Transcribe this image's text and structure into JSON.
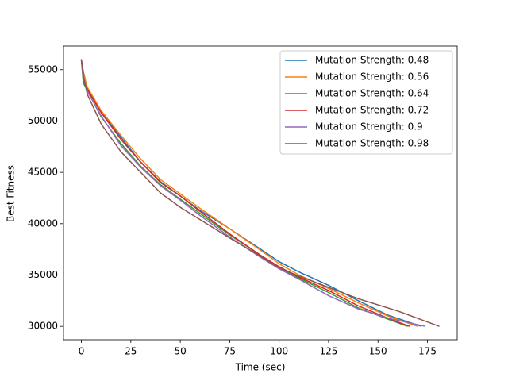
{
  "chart_data": {
    "type": "line",
    "xlabel": "Time (sec)",
    "ylabel": "Best Fitness",
    "xlim": [
      -9.05,
      190.05
    ],
    "ylim": [
      28700,
      57300
    ],
    "xticks": [
      0,
      25,
      50,
      75,
      100,
      125,
      150,
      175
    ],
    "yticks": [
      30000,
      35000,
      40000,
      45000,
      50000,
      55000
    ],
    "legend": "upper right",
    "series": [
      {
        "name": "Mutation Strength: 0.48",
        "color": "#1f77b4",
        "x": [
          0,
          1,
          3,
          10,
          20,
          30,
          40,
          50,
          60,
          75,
          90,
          100,
          110,
          125,
          140,
          155,
          172
        ],
        "values": [
          56000,
          54800,
          53200,
          50900,
          48400,
          46000,
          44100,
          42700,
          41300,
          39500,
          37600,
          36300,
          35300,
          34000,
          32500,
          31100,
          30000
        ]
      },
      {
        "name": "Mutation Strength: 0.56",
        "color": "#ff7f0e",
        "x": [
          0,
          1,
          3,
          10,
          20,
          30,
          40,
          50,
          60,
          75,
          90,
          100,
          110,
          125,
          140,
          155,
          170
        ],
        "values": [
          56000,
          54600,
          53300,
          51000,
          48600,
          46300,
          44300,
          42900,
          41500,
          39500,
          37500,
          36100,
          35000,
          33700,
          32300,
          31000,
          30000
        ]
      },
      {
        "name": "Mutation Strength: 0.64",
        "color": "#2ca02c",
        "x": [
          0,
          1,
          3,
          10,
          20,
          30,
          40,
          50,
          60,
          75,
          90,
          100,
          110,
          125,
          140,
          155,
          165
        ],
        "values": [
          56000,
          53700,
          53000,
          50400,
          47800,
          45600,
          43800,
          42400,
          41000,
          38900,
          37000,
          35700,
          34700,
          33300,
          31800,
          30700,
          30000
        ]
      },
      {
        "name": "Mutation Strength: 0.72",
        "color": "#d62728",
        "x": [
          0,
          1,
          3,
          10,
          20,
          30,
          40,
          50,
          60,
          75,
          90,
          100,
          110,
          125,
          140,
          155,
          166
        ],
        "values": [
          56000,
          54000,
          53100,
          50800,
          48200,
          46000,
          44000,
          42700,
          41200,
          39000,
          37000,
          35800,
          34800,
          33500,
          32000,
          30800,
          30000
        ]
      },
      {
        "name": "Mutation Strength: 0.9",
        "color": "#9467bd",
        "x": [
          0,
          1,
          3,
          10,
          20,
          30,
          40,
          50,
          60,
          75,
          90,
          100,
          110,
          125,
          140,
          155,
          174
        ],
        "values": [
          56000,
          54200,
          52900,
          50500,
          47600,
          45500,
          43700,
          42300,
          40800,
          38700,
          36800,
          35600,
          34600,
          33000,
          31700,
          30800,
          30000
        ]
      },
      {
        "name": "Mutation Strength: 0.98",
        "color": "#8c564b",
        "x": [
          0,
          1,
          3,
          10,
          20,
          30,
          40,
          50,
          60,
          75,
          90,
          100,
          110,
          125,
          140,
          160,
          181
        ],
        "values": [
          56000,
          54400,
          52600,
          49700,
          47000,
          45000,
          43000,
          41600,
          40400,
          38600,
          36900,
          35700,
          34900,
          33800,
          32700,
          31500,
          30000
        ]
      }
    ]
  }
}
